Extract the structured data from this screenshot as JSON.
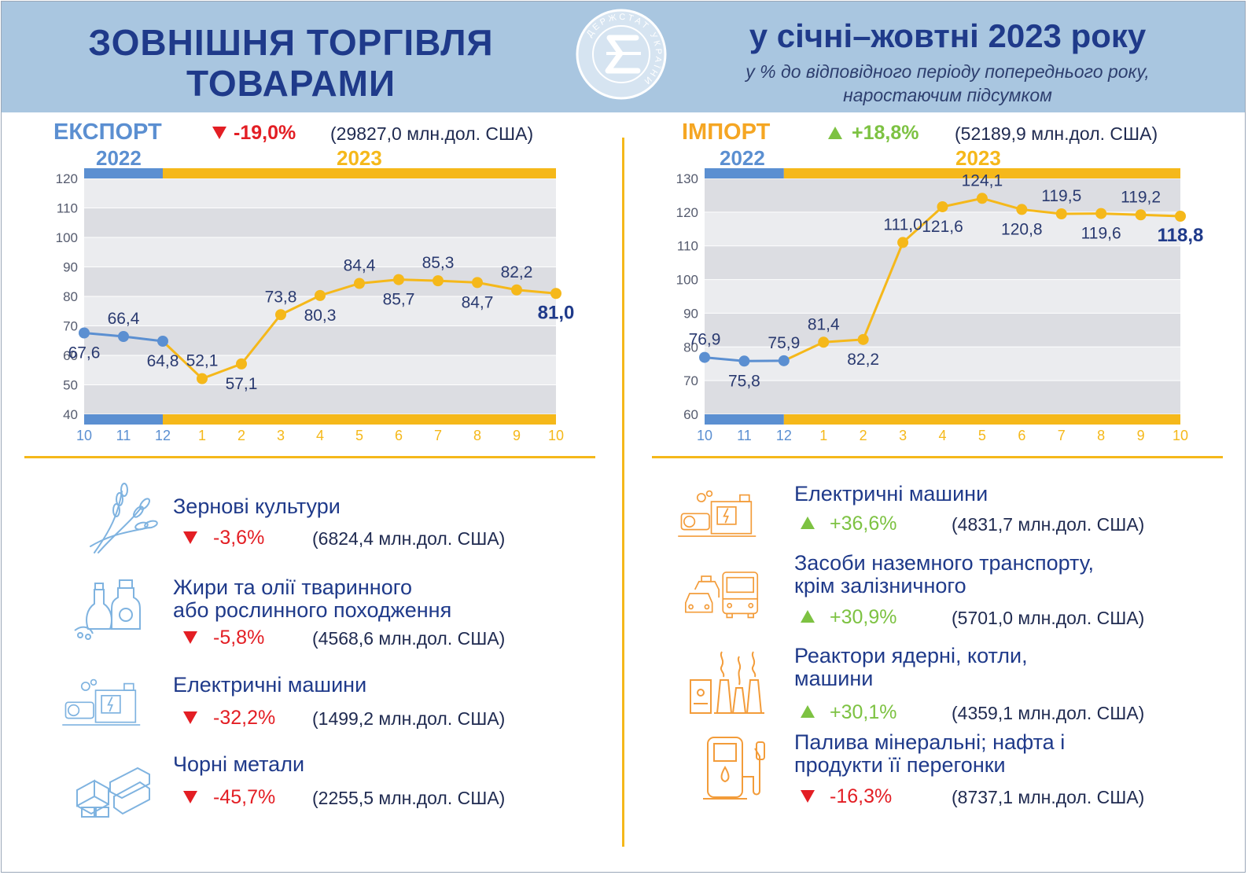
{
  "header": {
    "title_line1": "ЗОВНІШНЯ ТОРГІВЛЯ",
    "title_line2": "ТОВАРАМИ",
    "period": "у січні–жовтні 2023 року",
    "subtitle_line1": "у % до відповідного періоду попереднього року,",
    "subtitle_line2": "наростаючим підсумком",
    "logo_text": "ДЕРЖСТАТ УКРАЇНИ"
  },
  "export": {
    "label": "ЕКСПОРТ",
    "change": "-19,0%",
    "direction": "down",
    "absolute": "(29827,0 млн.дол. США)",
    "year_prev": "2022",
    "year_curr": "2023"
  },
  "import": {
    "label": "ІМПОРТ",
    "change": "+18,8%",
    "direction": "up",
    "absolute": "(52189,9 млн.дол. США)",
    "year_prev": "2022",
    "year_curr": "2023"
  },
  "colors": {
    "blue_series": "#5b8fd1",
    "yellow_series": "#f5b81a",
    "export_title": "#5b8fd1",
    "import_title": "#f5a623",
    "negative": "#e31e24",
    "positive": "#7dc242"
  },
  "chart_data": [
    {
      "type": "line",
      "categories": [
        "10",
        "11",
        "12",
        "1",
        "2",
        "3",
        "4",
        "5",
        "6",
        "7",
        "8",
        "9",
        "10"
      ],
      "values": [
        67.6,
        66.4,
        64.8,
        52.1,
        57.1,
        73.8,
        80.3,
        84.4,
        85.7,
        85.3,
        84.7,
        82.2,
        81.0
      ],
      "labels": [
        "67,6",
        "66,4",
        "64,8",
        "52,1",
        "57,1",
        "73,8",
        "80,3",
        "84,4",
        "85,7",
        "85,3",
        "84,7",
        "82,2",
        "81,0"
      ],
      "label_pos": [
        "below",
        "above",
        "below",
        "above",
        "below",
        "above",
        "below",
        "above",
        "below",
        "above",
        "below",
        "above",
        "below"
      ],
      "ylim": [
        40,
        120
      ],
      "yticks": [
        40,
        50,
        60,
        70,
        80,
        90,
        100,
        110,
        120
      ],
      "prev_year_points": 3,
      "last_bold": true,
      "grid": true
    },
    {
      "type": "line",
      "categories": [
        "10",
        "11",
        "12",
        "1",
        "2",
        "3",
        "4",
        "5",
        "6",
        "7",
        "8",
        "9",
        "10"
      ],
      "values": [
        76.9,
        75.8,
        75.9,
        81.4,
        82.2,
        111.0,
        121.6,
        124.1,
        120.8,
        119.5,
        119.6,
        119.2,
        118.8
      ],
      "labels": [
        "76,9",
        "75,8",
        "75,9",
        "81,4",
        "82,2",
        "111,0",
        "121,6",
        "124,1",
        "120,8",
        "119,5",
        "119,6",
        "119,2",
        "118,8"
      ],
      "label_pos": [
        "above",
        "below",
        "above",
        "above",
        "below",
        "above",
        "below",
        "above",
        "below",
        "above",
        "below",
        "above",
        "below"
      ],
      "ylim": [
        60,
        130
      ],
      "yticks": [
        60,
        70,
        80,
        90,
        100,
        110,
        120,
        130
      ],
      "prev_year_points": 3,
      "last_bold": true,
      "grid": true
    }
  ],
  "export_items": [
    {
      "name_line1": "Зернові культури",
      "name_line2": "",
      "change": "-3,6%",
      "direction": "down",
      "absolute": "(6824,4 млн.дол. США)",
      "icon": "wheat-icon"
    },
    {
      "name_line1": "Жири та олії тваринного",
      "name_line2": "або рослинного походження",
      "change": "-5,8%",
      "direction": "down",
      "absolute": "(4568,6 млн.дол. США)",
      "icon": "oil-bottles-icon"
    },
    {
      "name_line1": "Електричні машини",
      "name_line2": "",
      "change": "-32,2%",
      "direction": "down",
      "absolute": "(1499,2 млн.дол. США)",
      "icon": "generator-icon"
    },
    {
      "name_line1": "Чорні метали",
      "name_line2": "",
      "change": "-45,7%",
      "direction": "down",
      "absolute": "(2255,5 млн.дол. США)",
      "icon": "metal-beams-icon"
    }
  ],
  "import_items": [
    {
      "name_line1": "Електричні машини",
      "name_line2": "",
      "change": "+36,6%",
      "direction": "up",
      "absolute": "(4831,7 млн.дол. США)",
      "icon": "generator-icon"
    },
    {
      "name_line1": "Засоби наземного транспорту,",
      "name_line2": "крім залізничного",
      "change": "+30,9%",
      "direction": "up",
      "absolute": "(5701,0 млн.дол. США)",
      "icon": "bus-cars-icon"
    },
    {
      "name_line1": "Реактори ядерні, котли,",
      "name_line2": "машини",
      "change": "+30,1%",
      "direction": "up",
      "absolute": "(4359,1 млн.дол. США)",
      "icon": "power-plant-icon"
    },
    {
      "name_line1": "Палива мінеральні; нафта і",
      "name_line2": "продукти її перегонки",
      "change": "-16,3%",
      "direction": "down",
      "absolute": "(8737,1 млн.дол. США)",
      "icon": "fuel-pump-icon"
    }
  ]
}
